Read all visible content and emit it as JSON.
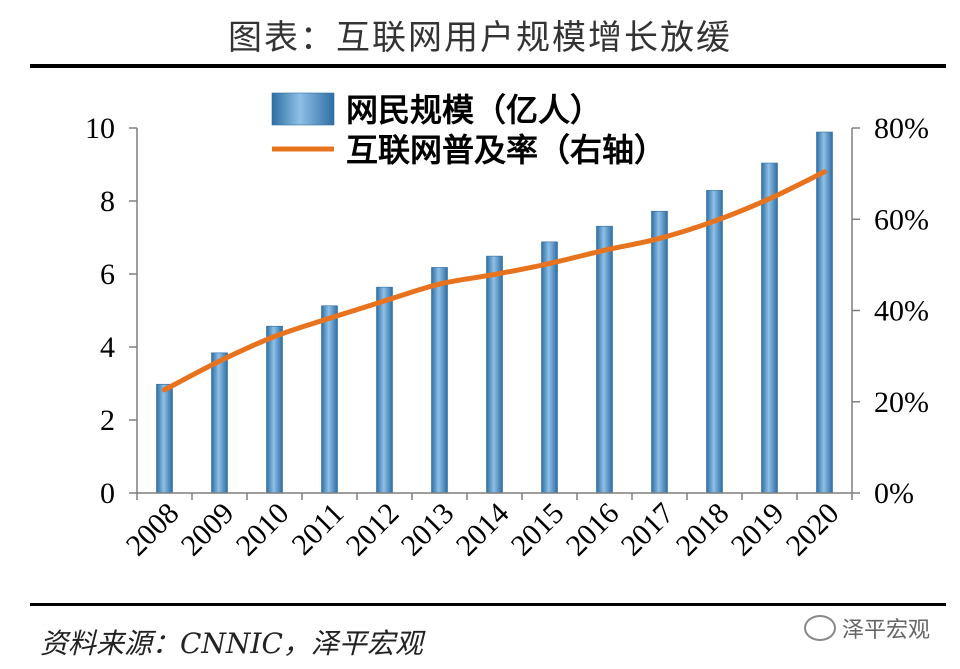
{
  "header": {
    "title": "图表：互联网用户规模增长放缓"
  },
  "footer": {
    "source": "资料来源：CNNIC，泽平宏观",
    "watermark": "泽平宏观"
  },
  "colors": {
    "bar": "#4a8fc6",
    "bar_edge": "#2e6ea3",
    "line": "#e8731f",
    "axis": "#7f7f7f"
  },
  "chart_data": {
    "type": "bar",
    "categories": [
      "2008",
      "2009",
      "2010",
      "2011",
      "2012",
      "2013",
      "2014",
      "2015",
      "2016",
      "2017",
      "2018",
      "2019",
      "2020"
    ],
    "series": [
      {
        "name": "网民规模（亿人）",
        "type": "bar",
        "axis": "left",
        "values": [
          2.98,
          3.84,
          4.57,
          5.13,
          5.64,
          6.18,
          6.49,
          6.88,
          7.31,
          7.72,
          8.29,
          9.04,
          9.89
        ]
      },
      {
        "name": "互联网普及率（右轴）",
        "type": "line",
        "axis": "right",
        "values": [
          0.226,
          0.289,
          0.343,
          0.383,
          0.421,
          0.458,
          0.479,
          0.503,
          0.532,
          0.558,
          0.596,
          0.645,
          0.704
        ]
      }
    ],
    "y_left": {
      "ticks": [
        "0",
        "2",
        "4",
        "6",
        "8",
        "10"
      ],
      "ylim": [
        0,
        10
      ]
    },
    "y_right": {
      "ticks": [
        "0%",
        "20%",
        "40%",
        "60%",
        "80%"
      ],
      "ylim": [
        0,
        0.8
      ]
    },
    "legend": "top-center",
    "grid": false
  }
}
